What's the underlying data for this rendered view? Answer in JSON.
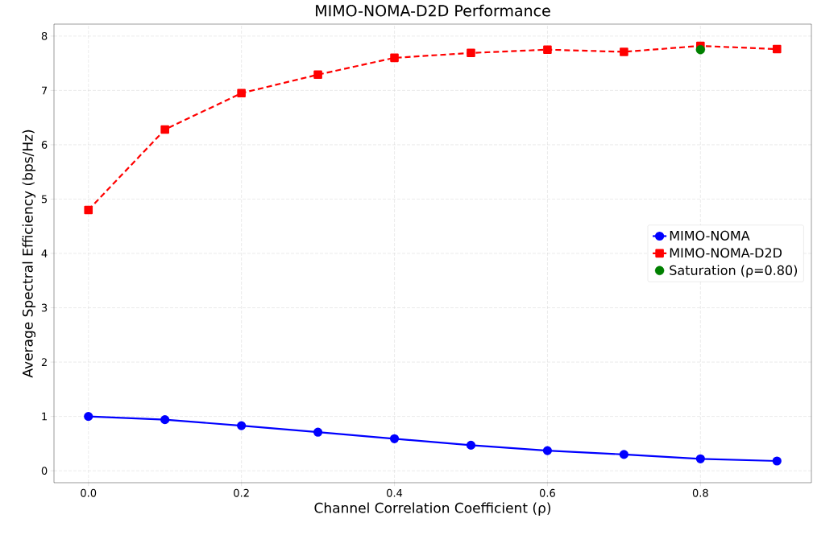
{
  "chart_data": {
    "type": "line",
    "title": "MIMO-NOMA-D2D Performance",
    "xlabel": "Channel Correlation Coefficient (ρ)",
    "ylabel": "Average Spectral Efficiency (bps/Hz)",
    "x": [
      0.0,
      0.1,
      0.2,
      0.3,
      0.4,
      0.5,
      0.6,
      0.7,
      0.8,
      0.9
    ],
    "series": [
      {
        "name": "MIMO-NOMA",
        "color": "#0000ff",
        "marker": "circle",
        "line_style": "solid",
        "values": [
          1.0,
          0.94,
          0.83,
          0.71,
          0.59,
          0.47,
          0.37,
          0.3,
          0.22,
          0.18
        ]
      },
      {
        "name": "MIMO-NOMA-D2D",
        "color": "#ff0000",
        "marker": "square",
        "line_style": "dashed",
        "values": [
          4.8,
          6.28,
          6.95,
          7.29,
          7.6,
          7.69,
          7.75,
          7.71,
          7.82,
          7.76
        ]
      },
      {
        "name": "Saturation (ρ=0.80)",
        "type": "scatter",
        "color": "#008000",
        "marker": "circle",
        "x": [
          0.8
        ],
        "values": [
          7.75
        ]
      }
    ],
    "xlim": [
      -0.045,
      0.945
    ],
    "ylim": [
      -0.22,
      8.22
    ],
    "xticks": [
      {
        "value": 0,
        "label": "0.0"
      },
      {
        "value": 0.2,
        "label": "0.2"
      },
      {
        "value": 0.4,
        "label": "0.4"
      },
      {
        "value": 0.6,
        "label": "0.6"
      },
      {
        "value": 0.8,
        "label": "0.8"
      }
    ],
    "yticks": [
      0,
      1,
      2,
      3,
      4,
      5,
      6,
      7,
      8
    ],
    "grid": true,
    "legend": "right"
  }
}
